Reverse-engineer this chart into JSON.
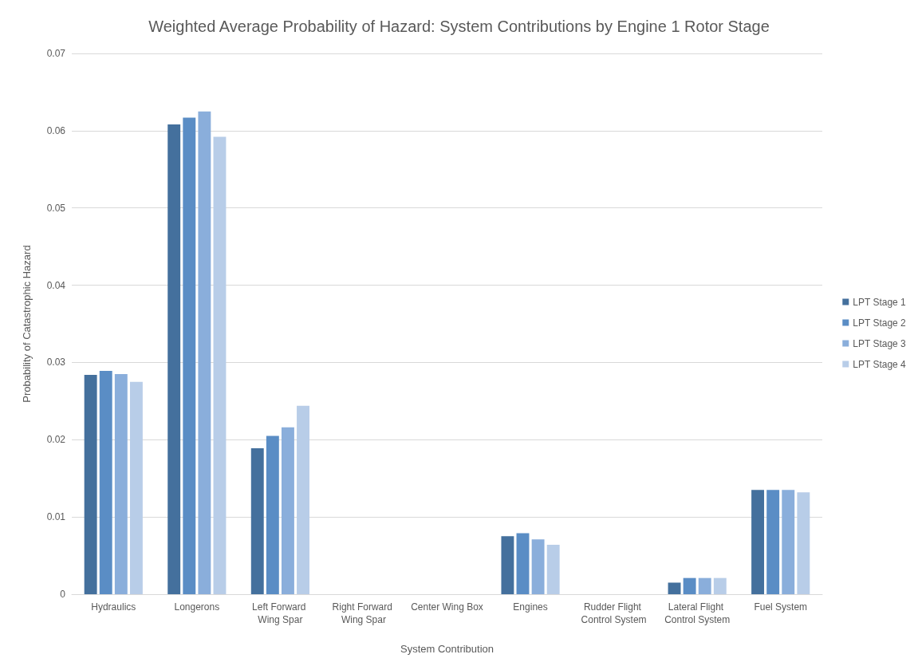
{
  "chart_data": {
    "type": "bar",
    "title": "Weighted Average Probability of Hazard: System Contributions by Engine 1 Rotor Stage",
    "xlabel": "System Contribution",
    "ylabel": "Probability of Catastrophic Hazard",
    "categories": [
      "Hydraulics",
      "Longerons",
      "Left Forward Wing Spar",
      "Right Forward Wing Spar",
      "Center Wing Box",
      "Engines",
      "Rudder Flight Control System",
      "Lateral Flight Control System",
      "Fuel System"
    ],
    "series": [
      {
        "name": "LPT Stage 1",
        "color": "#44709d",
        "values": [
          0.0284,
          0.0608,
          0.0189,
          0,
          0,
          0.0075,
          0,
          0.0015,
          0.0135
        ]
      },
      {
        "name": "LPT Stage 2",
        "color": "#5a8dc5",
        "values": [
          0.0289,
          0.0617,
          0.0205,
          0,
          0,
          0.0079,
          0,
          0.0021,
          0.0135
        ]
      },
      {
        "name": "LPT Stage 3",
        "color": "#8aaedb",
        "values": [
          0.0285,
          0.0625,
          0.0216,
          0,
          0,
          0.0071,
          0,
          0.0021,
          0.0135
        ]
      },
      {
        "name": "LPT Stage 4",
        "color": "#b8cde8",
        "values": [
          0.0275,
          0.0592,
          0.0244,
          0,
          0,
          0.0064,
          0,
          0.0021,
          0.0132
        ]
      }
    ],
    "ylim": [
      0,
      0.07
    ],
    "yticks": [
      0,
      0.01,
      0.02,
      0.03,
      0.04,
      0.05,
      0.06,
      0.07
    ],
    "grid": "y",
    "legend": "right"
  }
}
